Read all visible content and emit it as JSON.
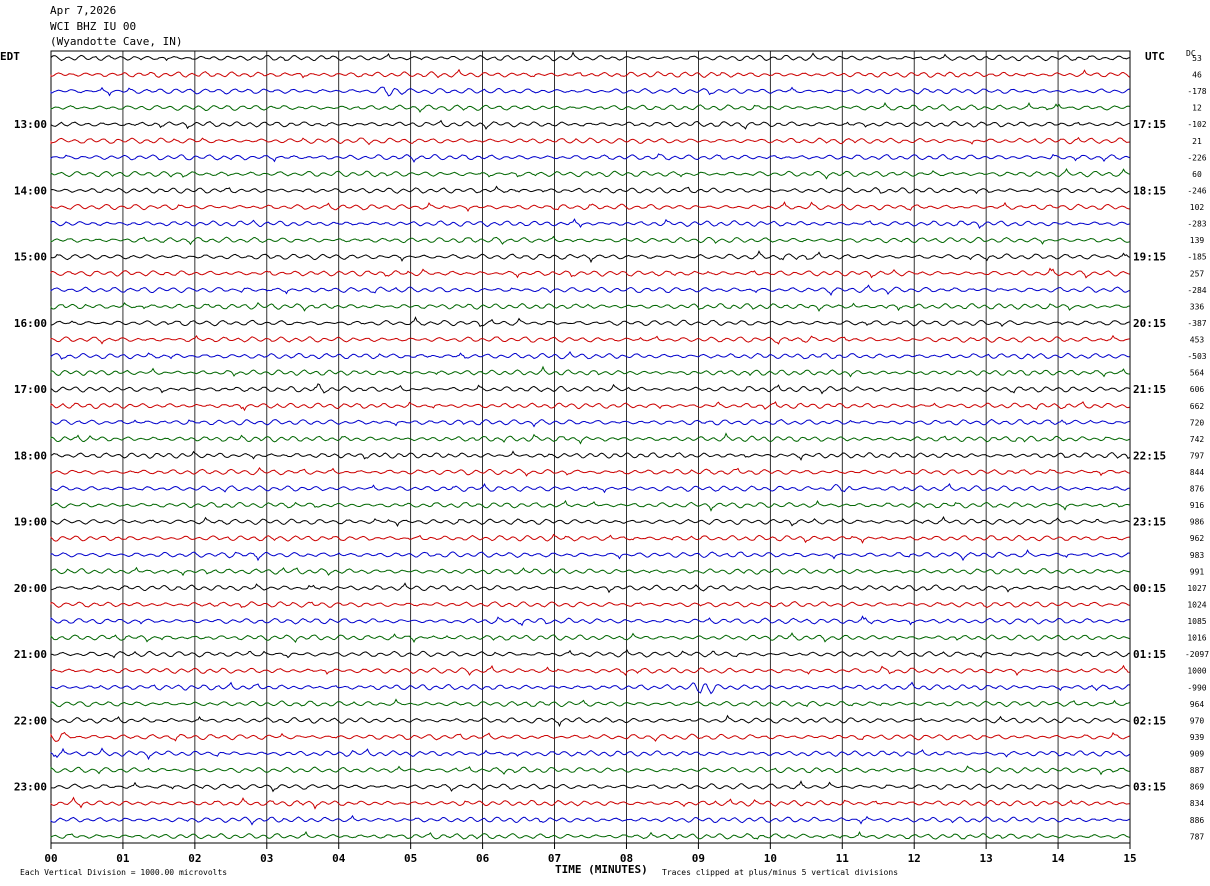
{
  "header": {
    "date": "Apr 7,2026",
    "station": "WCI BHZ IU 00",
    "location": "(Wyandotte Cave, IN)"
  },
  "labels": {
    "left_tz": "EDT",
    "right_tz": "UTC",
    "dc": "DC",
    "x_title": "TIME (MINUTES)",
    "footer_left": "Each Vertical Division = 1000.00 microvolts",
    "footer_right": "Traces clipped at plus/minus 5 vertical divisions"
  },
  "chart_data": {
    "type": "line",
    "title": "",
    "xlabel": "TIME (MINUTES)",
    "x_ticks": [
      "00",
      "01",
      "02",
      "03",
      "04",
      "05",
      "06",
      "07",
      "08",
      "09",
      "10",
      "11",
      "12",
      "13",
      "14",
      "15"
    ],
    "xlim": [
      0,
      15
    ],
    "rows_per_hour": 4,
    "trace_colors": [
      "#000000",
      "#cc0000",
      "#0000cc",
      "#006600"
    ],
    "left_hour_labels": [
      "13:00",
      "14:00",
      "15:00",
      "16:00",
      "17:00",
      "18:00",
      "19:00",
      "20:00",
      "21:00",
      "22:00",
      "23:00"
    ],
    "left_hour_rows": [
      4,
      8,
      12,
      16,
      20,
      24,
      28,
      32,
      36,
      40,
      44
    ],
    "right_hour_labels": [
      "17:15",
      "18:15",
      "19:15",
      "20:15",
      "21:15",
      "22:15",
      "23:15",
      "00:15",
      "01:15",
      "02:15",
      "03:15"
    ],
    "dc_offsets": [
      "53",
      "46",
      "-178",
      "12",
      "-102",
      "21",
      "-226",
      "60",
      "-246",
      "102",
      "-283",
      "139",
      "-185",
      "257",
      "-284",
      "336",
      "-387",
      "453",
      "-503",
      "564",
      "606",
      "662",
      "720",
      "742",
      "797",
      "844",
      "876",
      "916",
      "986",
      "962",
      "983",
      "991",
      "1027",
      "1024",
      "1085",
      "1016",
      "-2097",
      "1000",
      "-990",
      "964",
      "970",
      "939",
      "909",
      "887",
      "869",
      "834",
      "886",
      "787"
    ],
    "event_rows": [
      2,
      26,
      38,
      41
    ]
  }
}
